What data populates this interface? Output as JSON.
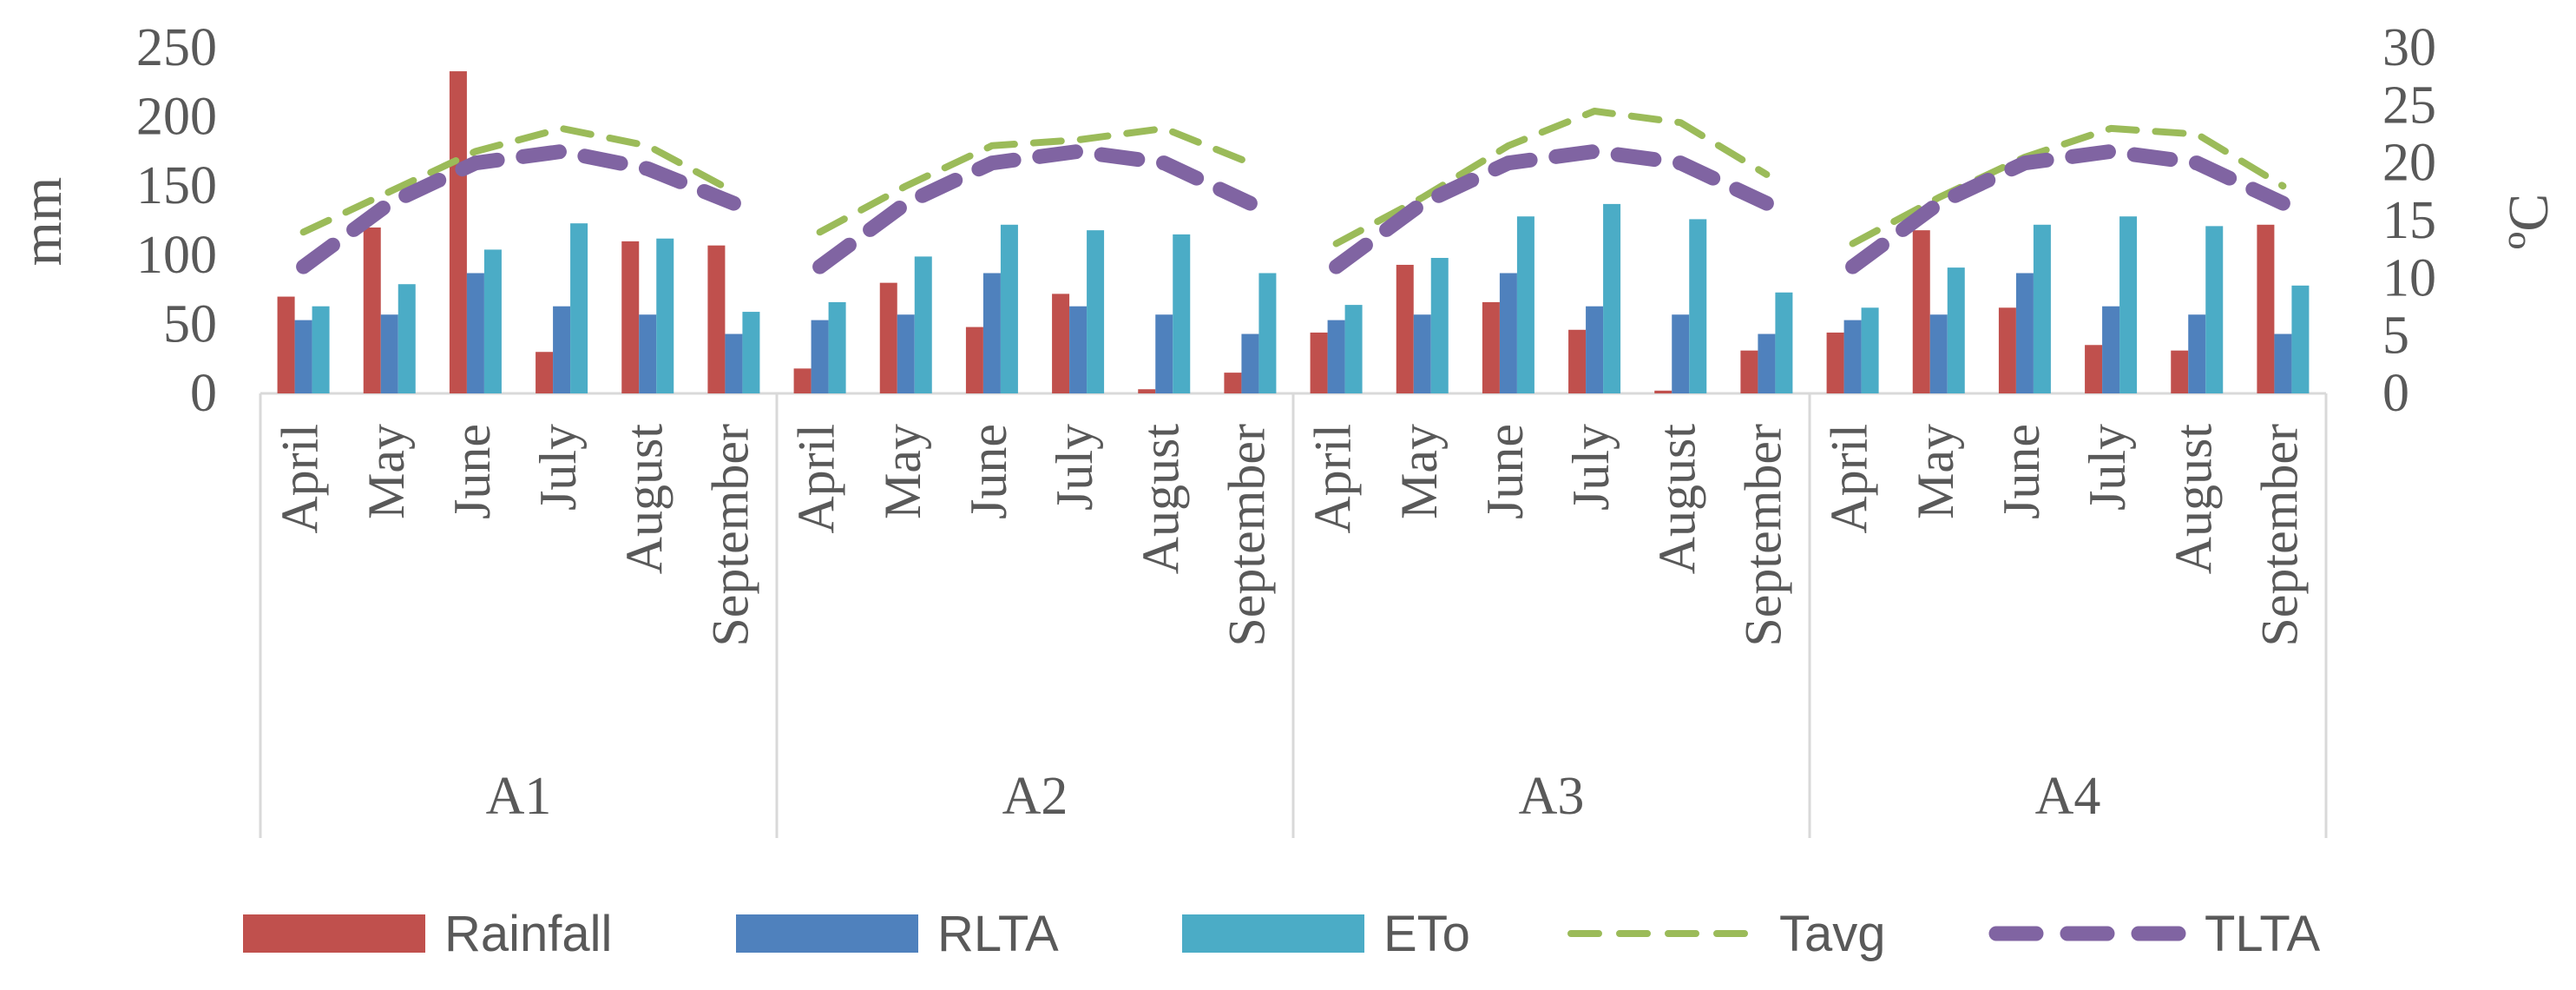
{
  "chart_data": {
    "type": "bar",
    "title": "",
    "groups": [
      "A1",
      "A2",
      "A3",
      "A4"
    ],
    "categories": [
      "April",
      "May",
      "June",
      "July",
      "August",
      "September"
    ],
    "ylabel": "mm",
    "y2label": "ºC",
    "ylim": [
      0,
      250
    ],
    "y2lim": [
      0,
      30
    ],
    "yticks": [
      "0",
      "50",
      "100",
      "150",
      "200",
      "250"
    ],
    "y2ticks": [
      "0",
      "5",
      "10",
      "15",
      "20",
      "25",
      "30"
    ],
    "grid": false,
    "legend_position": "bottom",
    "series": [
      {
        "name": "Rainfall",
        "kind": "bar",
        "axis": "left",
        "color": "#c0504d",
        "values": [
          [
            70,
            120,
            233,
            30,
            110,
            107
          ],
          [
            18,
            80,
            48,
            72,
            3,
            15
          ],
          [
            44,
            93,
            66,
            46,
            2,
            31
          ],
          [
            44,
            118,
            62,
            35,
            31,
            122
          ]
        ]
      },
      {
        "name": "RLTA",
        "kind": "bar",
        "axis": "left",
        "color": "#4f81bd",
        "values": [
          [
            53,
            57,
            87,
            63,
            57,
            43
          ],
          [
            53,
            57,
            87,
            63,
            57,
            43
          ],
          [
            53,
            57,
            87,
            63,
            57,
            43
          ],
          [
            53,
            57,
            87,
            63,
            57,
            43
          ]
        ]
      },
      {
        "name": "ETo",
        "kind": "bar",
        "axis": "left",
        "color": "#4bacc6",
        "values": [
          [
            63,
            79,
            104,
            123,
            112,
            59
          ],
          [
            66,
            99,
            122,
            118,
            115,
            87
          ],
          [
            64,
            98,
            128,
            137,
            126,
            73
          ],
          [
            62,
            91,
            122,
            128,
            121,
            78
          ]
        ]
      },
      {
        "name": "Tavg",
        "kind": "line",
        "axis": "right",
        "color": "#9bbb59",
        "dash": "dashed",
        "values": [
          [
            14,
            17.5,
            21,
            23,
            21.5,
            17.5
          ],
          [
            14,
            18,
            21.5,
            22,
            23,
            20
          ],
          [
            13,
            17,
            21.5,
            24.5,
            23.5,
            19
          ],
          [
            13,
            17,
            20.5,
            23,
            22.5,
            18
          ]
        ]
      },
      {
        "name": "TLTA",
        "kind": "line",
        "axis": "right",
        "color": "#8064a2",
        "dash": "long-dashed",
        "values": [
          [
            11,
            16.5,
            20,
            21,
            19.5,
            16.5
          ],
          [
            11,
            16.5,
            20,
            21,
            20,
            16.5
          ],
          [
            11,
            16.5,
            20,
            21,
            20,
            16.5
          ],
          [
            11,
            16.5,
            20,
            21,
            20,
            16.5
          ]
        ]
      }
    ]
  }
}
